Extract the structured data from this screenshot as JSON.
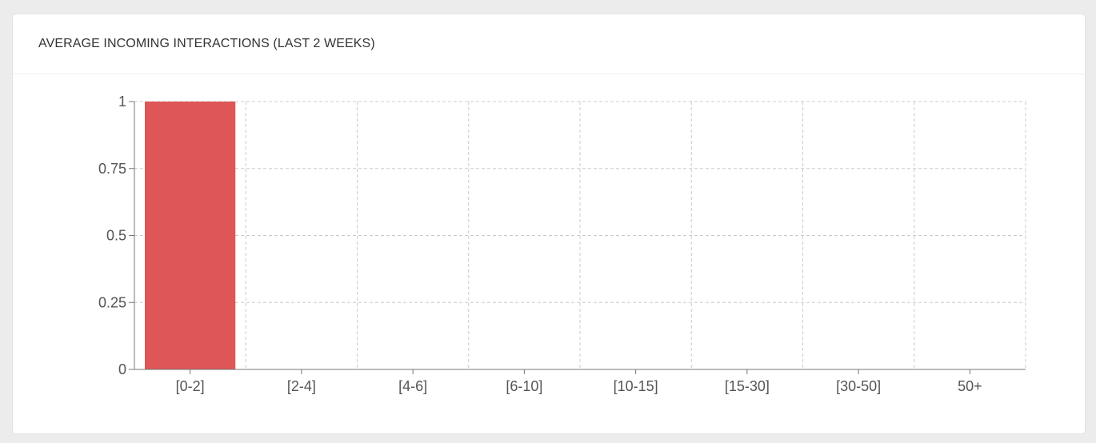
{
  "card": {
    "title": "AVERAGE INCOMING INTERACTIONS (LAST 2 WEEKS)"
  },
  "chart_data": {
    "type": "bar",
    "title": "AVERAGE INCOMING INTERACTIONS (LAST 2 WEEKS)",
    "xlabel": "",
    "ylabel": "",
    "categories": [
      "[0-2]",
      "[2-4]",
      "[4-6]",
      "[6-10]",
      "[10-15]",
      "[15-30]",
      "[30-50]",
      "50+"
    ],
    "values": [
      1,
      0,
      0,
      0,
      0,
      0,
      0,
      0
    ],
    "ylim": [
      0,
      1
    ],
    "yticks": [
      0,
      0.25,
      0.5,
      0.75,
      1
    ],
    "ytick_labels": [
      "0",
      "0.25",
      "0.5",
      "0.75",
      "1"
    ],
    "grid": true,
    "bar_color": "#de5656",
    "grid_color": "#cccccc",
    "axis_color": "#777777"
  }
}
